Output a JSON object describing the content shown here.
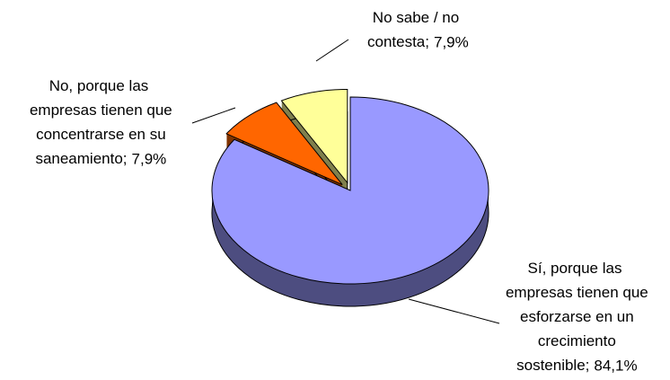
{
  "chart_data": {
    "type": "pie",
    "categories": [
      "Sí, porque las empresas tienen que esforzarse en un crecimiento sostenible;",
      "No, porque las empresas tienen que concentrarse en su saneamiento;",
      "No sabe / no contesta;"
    ],
    "values": [
      84.1,
      7.9,
      7.9
    ],
    "value_labels": [
      "84,1%",
      "7,9%",
      "7,9%"
    ],
    "colors": [
      "#9999ff",
      "#ff6600",
      "#ffff99"
    ]
  }
}
